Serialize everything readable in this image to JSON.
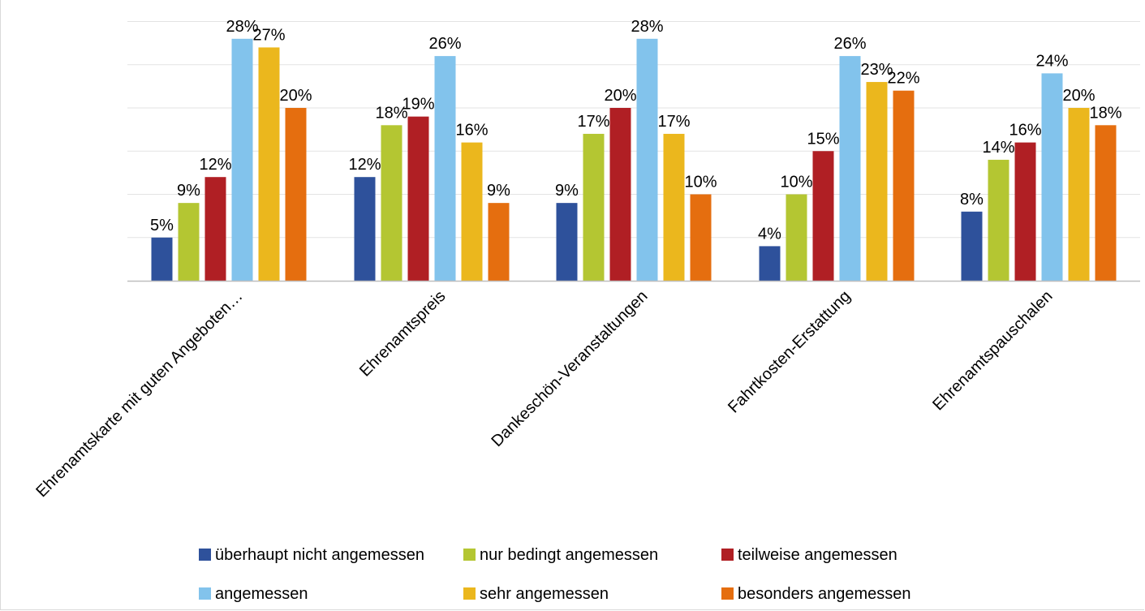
{
  "chart_data": {
    "type": "bar",
    "title": "",
    "xlabel": "",
    "ylabel": "",
    "ylim": [
      0,
      30
    ],
    "grid": true,
    "legend_position": "bottom",
    "categories": [
      "Ehrenamtskarte mit guten Angeboten…",
      "Ehrenamtspreis",
      "Dankeschön-Veranstaltungen",
      "Fahrtkosten-Erstattung",
      "Ehrenamtspauschalen"
    ],
    "series": [
      {
        "name": "überhaupt nicht angemessen",
        "color": "#2E519B",
        "values": [
          5,
          12,
          9,
          4,
          8
        ],
        "labels": [
          "5%",
          "12%",
          "9%",
          "4%",
          "8%"
        ]
      },
      {
        "name": "nur bedingt angemessen",
        "color": "#B4C632",
        "values": [
          9,
          18,
          17,
          10,
          14
        ],
        "labels": [
          "9%",
          "18%",
          "17%",
          "10%",
          "14%"
        ]
      },
      {
        "name": "teilweise angemessen",
        "color": "#B01F24",
        "values": [
          12,
          19,
          20,
          15,
          16
        ],
        "labels": [
          "12%",
          "19%",
          "20%",
          "15%",
          "16%"
        ]
      },
      {
        "name": "angemessen",
        "color": "#82C3EC",
        "values": [
          28,
          26,
          28,
          26,
          24
        ],
        "labels": [
          "28%",
          "26%",
          "28%",
          "26%",
          "24%"
        ]
      },
      {
        "name": "sehr angemessen",
        "color": "#EBB71D",
        "values": [
          27,
          16,
          17,
          23,
          20
        ],
        "labels": [
          "27%",
          "16%",
          "17%",
          "23%",
          "20%"
        ]
      },
      {
        "name": "besonders angemessen",
        "color": "#E56E0F",
        "values": [
          20,
          9,
          10,
          22,
          18
        ],
        "labels": [
          "20%",
          "9%",
          "10%",
          "22%",
          "18%"
        ]
      }
    ]
  }
}
